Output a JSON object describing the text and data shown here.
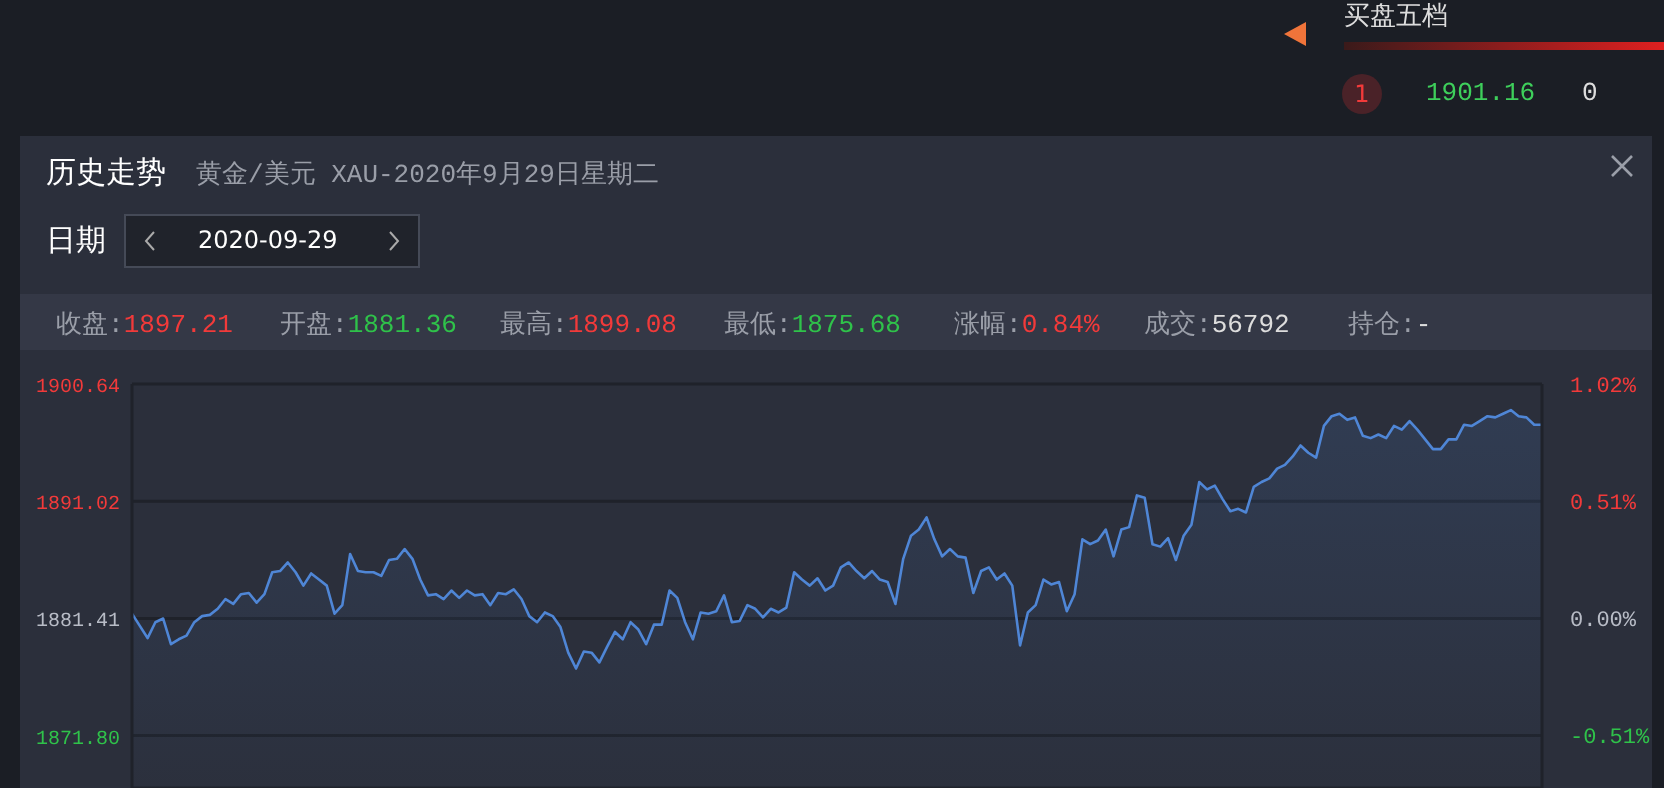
{
  "chart_data": {
    "type": "area",
    "title": "历史走势",
    "subtitle": "黄金/美元 XAU-2020年9月29日星期二",
    "annotations": [
      "日期",
      "2020-09-29",
      "收盘:1897.21",
      "开盘:1881.36",
      "最高:1899.08",
      "最低:1875.68",
      "涨幅:0.84%",
      "成交:56792",
      "持仓:-",
      "买盘五档",
      "1",
      "1901.16",
      "0"
    ],
    "categories": [
      null,
      null,
      null,
      null,
      null,
      null,
      null,
      null,
      null,
      null,
      null,
      null,
      null,
      null,
      null,
      null,
      null,
      null,
      null,
      null,
      null,
      null,
      null,
      null,
      null,
      null,
      null,
      null,
      null,
      null,
      null,
      null,
      null,
      null,
      null,
      null,
      null,
      null,
      null,
      null,
      null,
      null,
      null,
      null,
      null,
      null,
      null,
      null,
      null,
      null,
      null,
      null,
      null,
      null,
      null,
      null,
      null,
      null,
      null,
      null,
      null,
      null,
      null,
      null,
      null,
      null,
      null,
      null,
      null,
      null,
      null,
      null,
      null,
      null,
      null,
      null,
      null,
      null,
      null,
      null,
      null,
      null,
      null,
      null,
      null,
      null,
      null,
      null,
      null,
      null,
      null,
      null,
      null,
      null,
      null,
      null,
      null,
      null,
      null,
      null,
      null,
      null,
      null,
      null,
      null,
      null,
      null,
      null,
      null,
      null,
      null,
      null,
      null,
      null,
      null,
      null,
      null,
      null,
      null,
      null,
      null,
      null,
      null,
      null,
      null,
      null,
      null,
      null,
      null,
      null,
      null,
      null,
      null,
      null,
      null,
      null,
      null,
      null,
      null,
      null,
      null,
      null,
      null,
      null,
      null,
      null,
      null,
      null,
      null,
      null,
      null,
      null,
      null,
      null,
      null,
      null,
      null,
      null,
      null,
      null,
      null,
      null,
      null,
      null,
      null,
      null,
      null,
      null,
      null,
      null,
      null,
      null,
      null,
      null,
      null,
      null,
      null,
      null,
      null,
      null,
      null,
      null
    ],
    "series": [
      {
        "color": "#4f86d6",
        "values": [
          1881.8,
          1880.8,
          1879.8,
          1881.1,
          1881.4,
          1879.3,
          1879.7,
          1880.0,
          1881.1,
          1881.6,
          1881.7,
          1882.2,
          1883.0,
          1882.6,
          1883.4,
          1883.5,
          1882.7,
          1883.4,
          1885.2,
          1885.3,
          1886.0,
          1885.2,
          1884.1,
          1885.1,
          1884.6,
          1884.1,
          1881.8,
          1882.5,
          1886.7,
          1885.3,
          1885.2,
          1885.2,
          1884.9,
          1886.2,
          1886.3,
          1887.1,
          1886.3,
          1884.6,
          1883.3,
          1883.4,
          1883.0,
          1883.7,
          1883.1,
          1883.7,
          1883.3,
          1883.4,
          1882.5,
          1883.5,
          1883.4,
          1883.8,
          1883.0,
          1881.6,
          1881.1,
          1881.9,
          1881.6,
          1880.7,
          1878.6,
          1877.3,
          1878.7,
          1878.6,
          1877.8,
          1879.1,
          1880.3,
          1879.7,
          1881.1,
          1880.5,
          1879.3,
          1880.9,
          1880.9,
          1883.7,
          1883.1,
          1881.1,
          1879.7,
          1881.9,
          1881.8,
          1882.0,
          1883.3,
          1881.1,
          1881.2,
          1882.5,
          1882.2,
          1881.5,
          1882.2,
          1881.9,
          1882.3,
          1885.2,
          1884.6,
          1884.1,
          1884.7,
          1883.7,
          1884.1,
          1885.6,
          1886.0,
          1885.3,
          1884.7,
          1885.3,
          1884.6,
          1884.4,
          1882.6,
          1886.3,
          1888.2,
          1888.7,
          1889.7,
          1887.9,
          1886.5,
          1887.1,
          1886.5,
          1886.4,
          1883.5,
          1885.3,
          1885.6,
          1884.6,
          1885.1,
          1884.1,
          1879.2,
          1881.9,
          1882.5,
          1884.6,
          1884.2,
          1884.4,
          1882.0,
          1883.4,
          1887.9,
          1887.5,
          1887.8,
          1888.7,
          1886.5,
          1888.7,
          1888.9,
          1891.5,
          1891.3,
          1887.5,
          1887.3,
          1888.0,
          1886.2,
          1888.2,
          1889.1,
          1892.6,
          1892.0,
          1892.3,
          1891.2,
          1890.2,
          1890.4,
          1890.1,
          1892.2,
          1892.6,
          1892.9,
          1893.7,
          1894.0,
          1894.7,
          1895.6,
          1895.0,
          1894.6,
          1897.2,
          1898.0,
          1898.2,
          1897.7,
          1897.9,
          1896.4,
          1896.2,
          1896.5,
          1896.2,
          1897.2,
          1896.9,
          1897.6,
          1896.9,
          1896.1,
          1895.3,
          1895.3,
          1896.1,
          1896.1,
          1897.3,
          1897.2,
          1897.6,
          1898.0,
          1897.9,
          1898.2,
          1898.5,
          1898.0,
          1897.9,
          1897.3,
          1897.3
        ]
      }
    ],
    "ylim": [
      1867.5,
      1900.64
    ],
    "yticks": [
      1900.64,
      1891.02,
      1881.41,
      {
        "value": 1871.8,
        "label": "1871.80"
      }
    ],
    "y2lim": [
      -0.74,
      1.02
    ],
    "y2ticks": [
      {
        "value": 1.02,
        "label": "1.02%"
      },
      {
        "value": 0.51,
        "label": "0.51%"
      },
      {
        "value": 0,
        "label": "0.00%"
      },
      {
        "value": -0.51,
        "label": "-0.51%"
      }
    ],
    "grid": "y",
    "tick_labels": "y",
    "marker": "none",
    "line_style": "solid"
  }
}
